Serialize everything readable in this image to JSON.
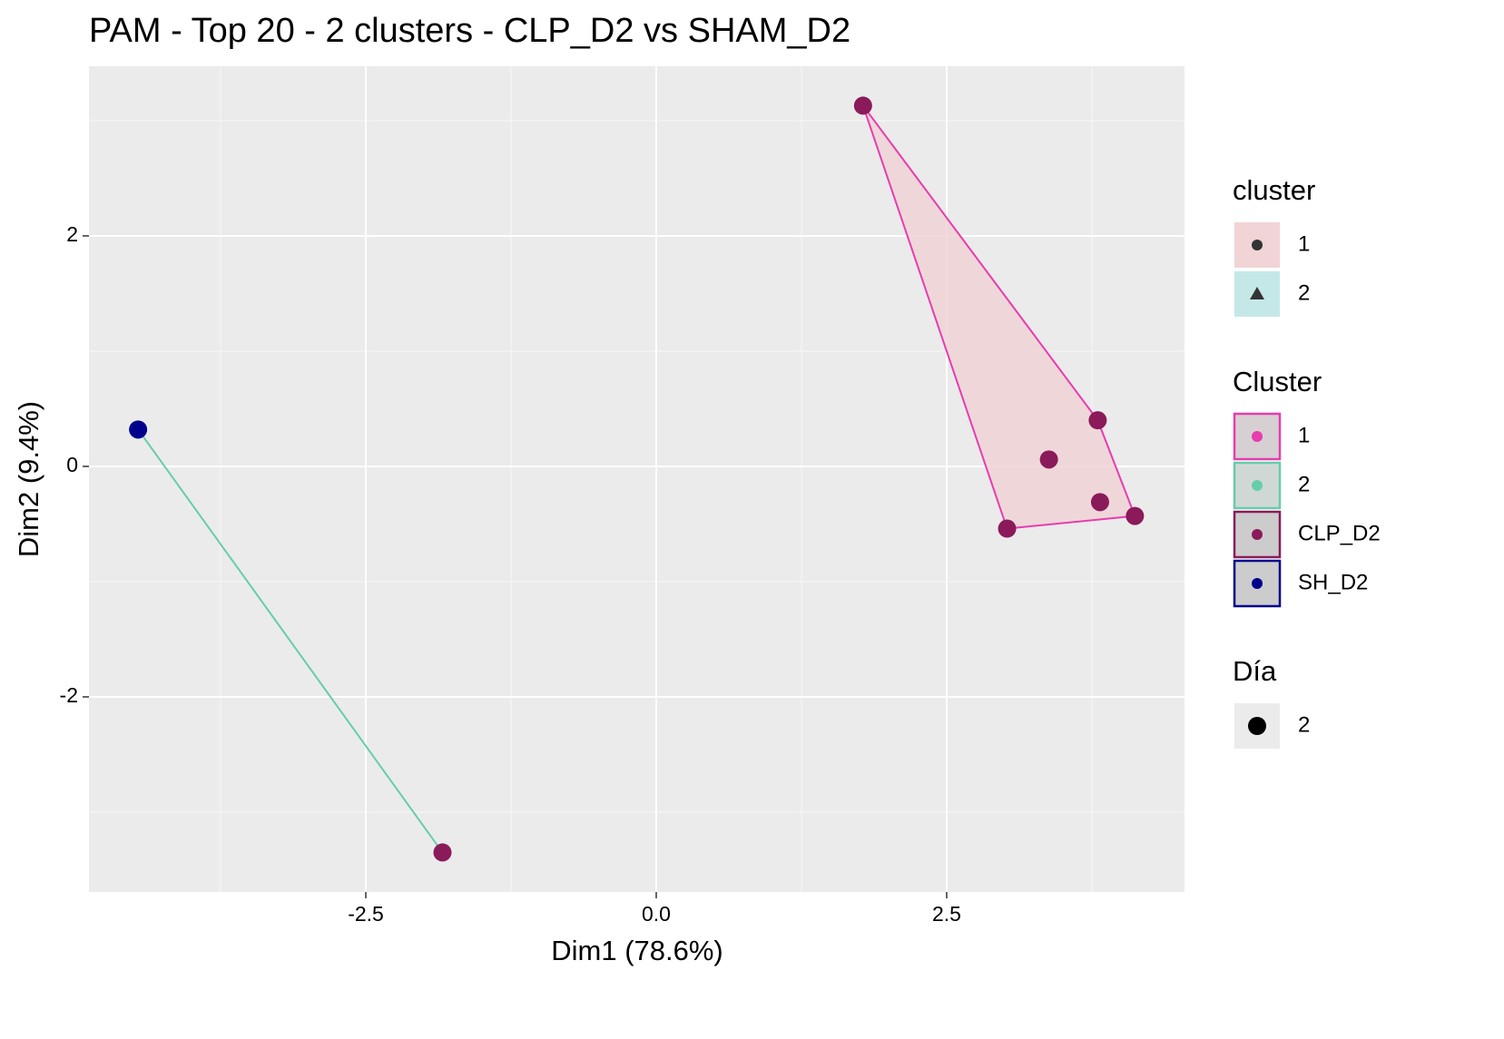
{
  "chart_data": {
    "type": "scatter",
    "title": "PAM - Top 20 - 2 clusters - CLP_D2 vs SHAM_D2",
    "x_label": "Dim1 (78.6%)",
    "y_label": "Dim2 (9.4%)",
    "xlim": [
      -4.883,
      4.547
    ],
    "ylim": [
      -3.693,
      3.472
    ],
    "xticks": [
      -2.5,
      {
        "value": 0,
        "label": "0.0"
      },
      2.5
    ],
    "yticks": [
      -2,
      0,
      2
    ],
    "minor_xgrid": [
      -3.75,
      -1.25,
      1.25,
      3.75
    ],
    "minor_ygrid": [
      -3,
      -1,
      1,
      3
    ],
    "grid": true,
    "cluster_colors": {
      "1": {
        "line": "#e83cb0",
        "fill": "#f0d4d6"
      },
      "2": {
        "line": "#66cdaa",
        "fill": "#c4e8e8"
      }
    },
    "series": [
      {
        "name": "CLP_D2",
        "color": "#8b1a5a",
        "x": [
          -1.84,
          1.78,
          3.8,
          3.38,
          3.82,
          4.12,
          3.02
        ],
        "y": [
          -3.35,
          3.13,
          0.4,
          0.06,
          -0.31,
          -0.43,
          -0.54
        ],
        "cluster": [
          2,
          1,
          1,
          1,
          1,
          1,
          1
        ]
      },
      {
        "name": "SH_D2",
        "color": "#00008b",
        "x": [
          -4.46
        ],
        "y": [
          0.32
        ],
        "cluster": [
          2
        ]
      }
    ],
    "legends": [
      {
        "title": "cluster",
        "entries": [
          {
            "label": "1",
            "key_fill": "#f0d4d6",
            "symbol": "circle",
            "symbol_color": "#333333"
          },
          {
            "label": "2",
            "key_fill": "#c4e8e8",
            "symbol": "triangle",
            "symbol_color": "#333333"
          }
        ]
      },
      {
        "title": "Cluster",
        "entries": [
          {
            "label": "1",
            "key_fill": "#d6d0d2",
            "key_border": "#e83cb0",
            "symbol": "circle",
            "symbol_color": "#e83cb0"
          },
          {
            "label": "2",
            "key_fill": "#d0d8d6",
            "key_border": "#66cdaa",
            "symbol": "circle",
            "symbol_color": "#66cdaa"
          },
          {
            "label": "CLP_D2",
            "key_fill": "#cccccc",
            "key_border": "#8b1a5a",
            "symbol": "circle",
            "symbol_color": "#8b1a5a"
          },
          {
            "label": "SH_D2",
            "key_fill": "#cccccc",
            "key_border": "#00008b",
            "symbol": "circle",
            "symbol_color": "#00008b"
          }
        ]
      },
      {
        "title": "Día",
        "entries": [
          {
            "label": "2",
            "key_fill": "#ebebeb",
            "symbol": "bigcircle",
            "symbol_color": "#000000"
          }
        ]
      }
    ]
  }
}
